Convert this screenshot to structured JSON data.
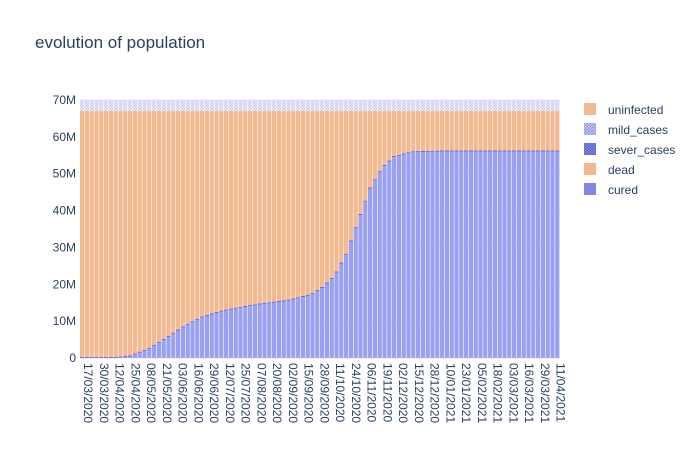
{
  "chart_data": {
    "type": "bar",
    "stacked": true,
    "title": "evolution of population",
    "xlabel": "",
    "ylabel": "",
    "ylim": [
      0,
      70000000
    ],
    "y_ticks": [
      {
        "value": 0,
        "label": "0"
      },
      {
        "value": 10000000,
        "label": "10M"
      },
      {
        "value": 20000000,
        "label": "20M"
      },
      {
        "value": 30000000,
        "label": "30M"
      },
      {
        "value": 40000000,
        "label": "40M"
      },
      {
        "value": 50000000,
        "label": "50M"
      },
      {
        "value": 60000000,
        "label": "60M"
      },
      {
        "value": 70000000,
        "label": "70M"
      }
    ],
    "x_ticks": [
      "17/03/2020",
      "30/03/2020",
      "12/04/2020",
      "25/04/2020",
      "08/05/2020",
      "21/05/2020",
      "03/06/2020",
      "16/06/2020",
      "29/06/2020",
      "12/07/2020",
      "25/07/2020",
      "07/08/2020",
      "20/08/2020",
      "02/09/2020",
      "15/09/2020",
      "28/09/2020",
      "11/10/2020",
      "24/10/2020",
      "06/11/2020",
      "19/11/2020",
      "02/12/2020",
      "15/12/2020",
      "28/12/2020",
      "10/01/2021",
      "23/01/2021",
      "05/02/2021",
      "18/02/2021",
      "03/03/2021",
      "16/03/2021",
      "29/03/2021",
      "11/04/2021"
    ],
    "x_tick_step_days": 13,
    "bar_step_days": 4,
    "bar_count": 100,
    "total_population_millions": 67,
    "legend": {
      "position": "right",
      "items": [
        {
          "name": "uninfected",
          "color": "#f4b98f",
          "pattern": "solid"
        },
        {
          "name": "mild_cases",
          "color": "#9fa6f4",
          "pattern": "hatched"
        },
        {
          "name": "sever_cases",
          "color": "#6670d8",
          "pattern": "hatched"
        },
        {
          "name": "dead",
          "color": "#f4b98f",
          "pattern": "hatched"
        },
        {
          "name": "cured",
          "color": "#7f86e4",
          "pattern": "solid"
        }
      ]
    },
    "cured_millions_at_days": [
      {
        "day": 0,
        "value": 0
      },
      {
        "day": 30,
        "value": 0
      },
      {
        "day": 40,
        "value": 0.4
      },
      {
        "day": 55,
        "value": 2.3
      },
      {
        "day": 70,
        "value": 5.3
      },
      {
        "day": 85,
        "value": 8.5
      },
      {
        "day": 100,
        "value": 11
      },
      {
        "day": 115,
        "value": 12.5
      },
      {
        "day": 130,
        "value": 13.5
      },
      {
        "day": 150,
        "value": 14.6
      },
      {
        "day": 170,
        "value": 15.4
      },
      {
        "day": 190,
        "value": 17
      },
      {
        "day": 200,
        "value": 19
      },
      {
        "day": 210,
        "value": 22
      },
      {
        "day": 220,
        "value": 28
      },
      {
        "day": 230,
        "value": 37
      },
      {
        "day": 240,
        "value": 46
      },
      {
        "day": 250,
        "value": 51.5
      },
      {
        "day": 260,
        "value": 54.5
      },
      {
        "day": 275,
        "value": 55.8
      },
      {
        "day": 300,
        "value": 56
      },
      {
        "day": 400,
        "value": 56
      }
    ],
    "infected_band_millions": 0.3,
    "top_band_millions": 3
  }
}
